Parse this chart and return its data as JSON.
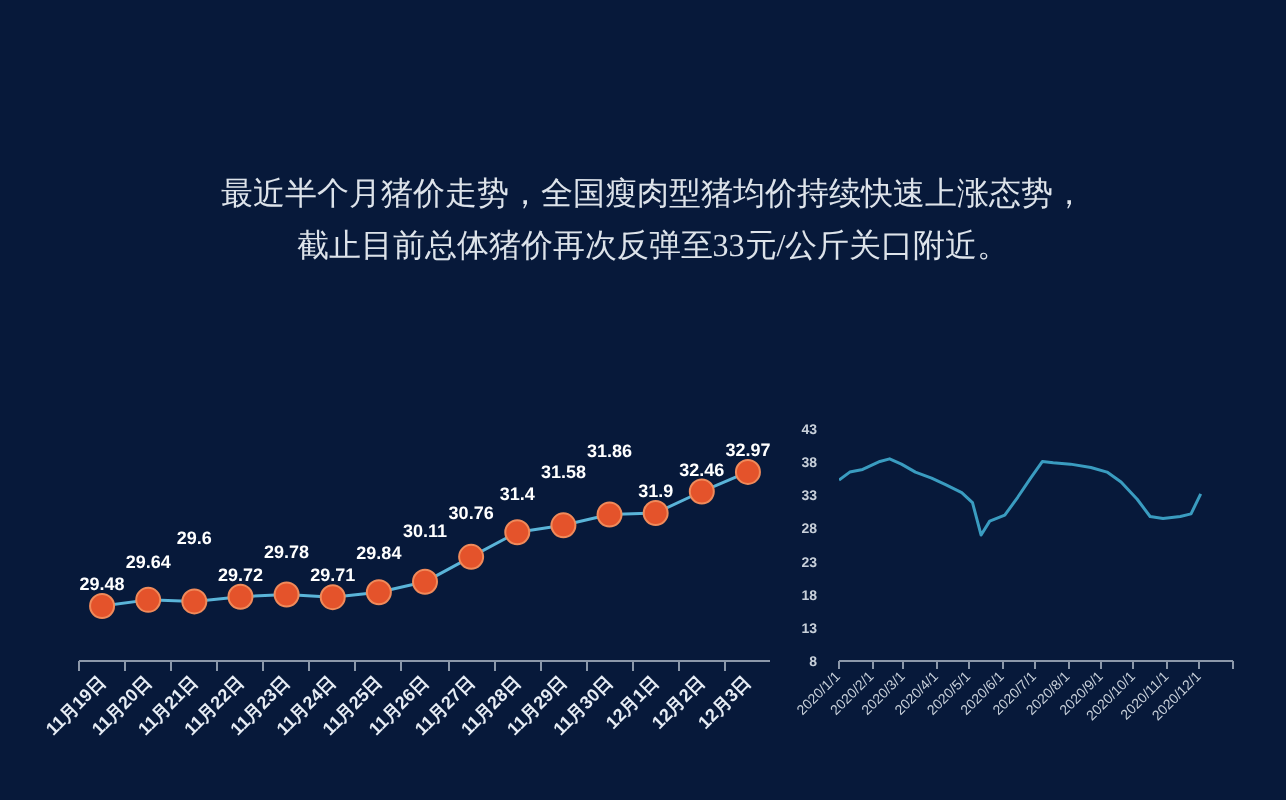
{
  "chart_data": [
    {
      "type": "line",
      "title": "最近半个月猪价走势，全国瘦肉型猪均价持续快速上涨态势，截止目前总体猪价再次反弹至33元/公斤关口附近。",
      "categories": [
        "11月19日",
        "11月20日",
        "11月21日",
        "11月22日",
        "11月23日",
        "11月24日",
        "11月25日",
        "11月26日",
        "11月27日",
        "11月28日",
        "11月29日",
        "11月30日",
        "12月1日",
        "12月2日",
        "12月3日"
      ],
      "values": [
        29.48,
        29.64,
        29.6,
        29.72,
        29.78,
        29.71,
        29.84,
        30.11,
        30.76,
        31.4,
        31.58,
        31.86,
        31.9,
        32.46,
        32.97
      ],
      "color": "#5ab4d8",
      "colors": [
        "#e4532b",
        "#e4532b",
        "#e4532b",
        "#e4532b",
        "#e4532b",
        "#e4532b",
        "#e4532b",
        "#e4532b",
        "#e4532b",
        "#e4532b",
        "#e4532b",
        "#e4532b",
        "#e4532b",
        "#e4532b",
        "#e4532b"
      ],
      "marker": "circle",
      "data_labels": true
    },
    {
      "type": "line",
      "x": [
        "2020-01-01",
        "2020-01-11",
        "2020-01-23",
        "2020-02-08",
        "2020-02-17",
        "2020-02-28",
        "2020-03-12",
        "2020-03-27",
        "2020-04-09",
        "2020-04-24",
        "2020-05-04",
        "2020-05-12",
        "2020-05-20",
        "2020-06-03",
        "2020-06-15",
        "2020-06-27",
        "2020-07-08",
        "2020-07-18",
        "2020-08-03",
        "2020-08-22",
        "2020-09-06",
        "2020-09-19",
        "2020-10-04",
        "2020-10-16",
        "2020-10-28",
        "2020-11-13",
        "2020-11-23",
        "2020-12-02"
      ],
      "values": [
        35.3,
        36.5,
        36.9,
        38.1,
        38.5,
        37.7,
        36.5,
        35.6,
        34.6,
        33.4,
        31.9,
        27.0,
        29.1,
        30.0,
        32.7,
        35.6,
        38.1,
        37.9,
        37.7,
        37.2,
        36.5,
        35.0,
        32.4,
        29.8,
        29.5,
        29.8,
        30.2,
        33.2
      ],
      "color": "#3a9cc0",
      "xlim": [
        "2020-01-01",
        "2021-01-01"
      ],
      "xticks": [
        {
          "value": "2020-01-01",
          "label": "2020/1/1"
        },
        {
          "value": "2020-02-01",
          "label": "2020/2/1"
        },
        {
          "value": "2020-03-01",
          "label": "2020/3/1"
        },
        {
          "value": "2020-04-01",
          "label": "2020/4/1"
        },
        {
          "value": "2020-05-01",
          "label": "2020/5/1"
        },
        {
          "value": "2020-06-01",
          "label": "2020/6/1"
        },
        {
          "value": "2020-07-01",
          "label": "2020/7/1"
        },
        {
          "value": "2020-08-01",
          "label": "2020/8/1"
        },
        {
          "value": "2020-09-01",
          "label": "2020/9/1"
        },
        {
          "value": "2020-10-01",
          "label": "2020/10/1"
        },
        {
          "value": "2020-11-01",
          "label": "2020/11/1"
        },
        {
          "value": "2020-12-01",
          "label": "2020/12/1"
        },
        {
          "value": "2021-01-01",
          "label": null
        }
      ],
      "ylim": [
        8,
        43
      ],
      "yticks": [
        8,
        13,
        18,
        23,
        28,
        33,
        38,
        43
      ]
    }
  ]
}
